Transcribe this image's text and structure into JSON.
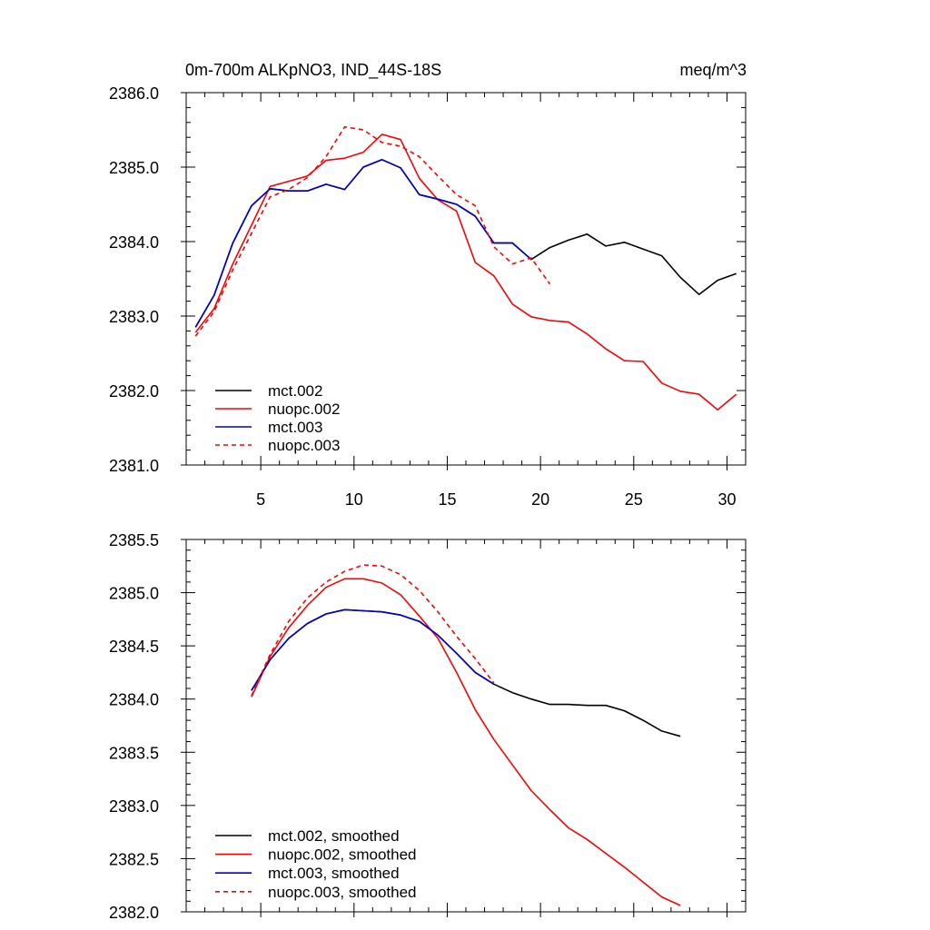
{
  "chart_data": [
    {
      "type": "line",
      "title": "0m-700m ALKpNO3, IND_44S-18S",
      "units": "meq/m^3",
      "xlim": [
        1,
        31
      ],
      "ylim": [
        2381.0,
        2386.0
      ],
      "xticks": [
        5,
        10,
        15,
        20,
        25,
        30
      ],
      "yticks": [
        2381.0,
        2382.0,
        2383.0,
        2384.0,
        2385.0,
        2386.0
      ],
      "xticklabels": [
        "5",
        "10",
        "15",
        "20",
        "25",
        "30"
      ],
      "yticklabels": [
        "2381.0",
        "2382.0",
        "2383.0",
        "2384.0",
        "2385.0",
        "2386.0"
      ],
      "grid": false,
      "legend_position": "bottom-left",
      "series": [
        {
          "name": "mct.002",
          "color": "#000000",
          "dash": "solid",
          "x": [
            1.5,
            2.5,
            3.5,
            4.5,
            5.5,
            6.5,
            7.5,
            8.5,
            9.5,
            10.5,
            11.5,
            12.5,
            13.5,
            14.5,
            15.5,
            16.5,
            17.5,
            18.5,
            19.5,
            20.5,
            21.5,
            22.5,
            23.5,
            24.5,
            25.5,
            26.5,
            27.5,
            28.5,
            29.5,
            30.5
          ],
          "y": [
            2382.85,
            2383.28,
            2383.98,
            2384.48,
            2384.71,
            2384.68,
            2384.68,
            2384.77,
            2384.7,
            2385.0,
            2385.1,
            2384.99,
            2384.63,
            2384.57,
            2384.5,
            2384.34,
            2383.98,
            2383.98,
            2383.76,
            2383.92,
            2384.02,
            2384.1,
            2383.94,
            2383.99,
            2383.9,
            2383.81,
            2383.52,
            2383.29,
            2383.48,
            2383.57
          ]
        },
        {
          "name": "nuopc.002",
          "color": "#ff0000",
          "dash": "solid",
          "x": [
            1.5,
            2.5,
            3.5,
            4.5,
            5.5,
            6.5,
            7.5,
            8.5,
            9.5,
            10.5,
            11.5,
            12.5,
            13.5,
            14.5,
            15.5,
            16.5,
            17.5,
            18.5,
            19.5,
            20.5,
            21.5,
            22.5,
            23.5,
            24.5,
            25.5,
            26.5,
            27.5,
            28.5,
            29.5,
            30.5
          ],
          "y": [
            2382.78,
            2383.1,
            2383.7,
            2384.22,
            2384.74,
            2384.81,
            2384.88,
            2385.09,
            2385.12,
            2385.2,
            2385.44,
            2385.37,
            2384.85,
            2384.56,
            2384.41,
            2383.72,
            2383.54,
            2383.16,
            2382.99,
            2382.94,
            2382.92,
            2382.76,
            2382.56,
            2382.4,
            2382.39,
            2382.1,
            2381.99,
            2381.95,
            2381.74,
            2381.95
          ]
        },
        {
          "name": "mct.003",
          "color": "#0000cc",
          "dash": "solid",
          "x": [
            1.5,
            2.5,
            3.5,
            4.5,
            5.5,
            6.5,
            7.5,
            8.5,
            9.5,
            10.5,
            11.5,
            12.5,
            13.5,
            14.5,
            15.5,
            16.5,
            17.5,
            18.5,
            19.5
          ],
          "y": [
            2382.85,
            2383.28,
            2383.98,
            2384.48,
            2384.71,
            2384.68,
            2384.68,
            2384.77,
            2384.7,
            2385.0,
            2385.1,
            2384.99,
            2384.63,
            2384.57,
            2384.5,
            2384.34,
            2383.98,
            2383.98,
            2383.76
          ]
        },
        {
          "name": "nuopc.003",
          "color": "#ff0000",
          "dash": "dashed",
          "x": [
            1.5,
            2.5,
            3.5,
            4.5,
            5.5,
            6.5,
            7.5,
            8.5,
            9.5,
            10.5,
            11.5,
            12.5,
            13.5,
            14.5,
            15.5,
            16.5,
            17.5,
            18.5,
            19.5,
            20.5
          ],
          "y": [
            2382.73,
            2383.06,
            2383.62,
            2384.11,
            2384.6,
            2384.7,
            2384.86,
            2385.14,
            2385.54,
            2385.5,
            2385.33,
            2385.28,
            2385.14,
            2384.88,
            2384.63,
            2384.48,
            2383.93,
            2383.7,
            2383.78,
            2383.43
          ]
        }
      ]
    },
    {
      "type": "line",
      "xlim": [
        1,
        31
      ],
      "ylim": [
        2382.0,
        2385.5
      ],
      "xticks": [
        5,
        10,
        15,
        20,
        25,
        30
      ],
      "yticks": [
        2382.0,
        2382.5,
        2383.0,
        2383.5,
        2384.0,
        2384.5,
        2385.0,
        2385.5
      ],
      "yticklabels": [
        "2382.0",
        "2382.5",
        "2383.0",
        "2383.5",
        "2384.0",
        "2384.5",
        "2385.0",
        "2385.5"
      ],
      "grid": false,
      "legend_position": "bottom-left",
      "series": [
        {
          "name": "mct.002, smoothed",
          "color": "#000000",
          "dash": "solid",
          "x": [
            4.5,
            5.5,
            6.5,
            7.5,
            8.5,
            9.5,
            10.5,
            11.5,
            12.5,
            13.5,
            14.5,
            15.5,
            16.5,
            17.5,
            18.5,
            19.5,
            20.5,
            21.5,
            22.5,
            23.5,
            24.5,
            25.5,
            26.5,
            27.5
          ],
          "y": [
            2384.08,
            2384.37,
            2384.57,
            2384.71,
            2384.8,
            2384.84,
            2384.83,
            2384.82,
            2384.79,
            2384.73,
            2384.6,
            2384.43,
            2384.25,
            2384.14,
            2384.06,
            2384.0,
            2383.95,
            2383.95,
            2383.94,
            2383.94,
            2383.89,
            2383.8,
            2383.7,
            2383.65
          ]
        },
        {
          "name": "nuopc.002, smoothed",
          "color": "#ff0000",
          "dash": "solid",
          "x": [
            4.5,
            5.5,
            6.5,
            7.5,
            8.5,
            9.5,
            10.5,
            11.5,
            12.5,
            13.5,
            14.5,
            15.5,
            16.5,
            17.5,
            18.5,
            19.5,
            20.5,
            21.5,
            22.5,
            23.5,
            24.5,
            25.5,
            26.5,
            27.5
          ],
          "y": [
            2384.02,
            2384.4,
            2384.67,
            2384.88,
            2385.05,
            2385.13,
            2385.13,
            2385.09,
            2384.98,
            2384.78,
            2384.57,
            2384.25,
            2383.9,
            2383.62,
            2383.38,
            2383.14,
            2382.96,
            2382.79,
            2382.68,
            2382.55,
            2382.42,
            2382.28,
            2382.14,
            2382.06
          ]
        },
        {
          "name": "mct.003, smoothed",
          "color": "#0000cc",
          "dash": "solid",
          "x": [
            4.5,
            5.5,
            6.5,
            7.5,
            8.5,
            9.5,
            10.5,
            11.5,
            12.5,
            13.5,
            14.5,
            15.5,
            16.5,
            17.5
          ],
          "y": [
            2384.08,
            2384.37,
            2384.57,
            2384.71,
            2384.8,
            2384.84,
            2384.83,
            2384.82,
            2384.79,
            2384.73,
            2384.6,
            2384.43,
            2384.25,
            2384.14
          ]
        },
        {
          "name": "nuopc.003, smoothed",
          "color": "#ff0000",
          "dash": "dashed",
          "x": [
            4.5,
            5.5,
            6.5,
            7.5,
            8.5,
            9.5,
            10.5,
            11.5,
            12.5,
            13.5,
            14.5,
            15.5,
            16.5,
            17.5
          ],
          "y": [
            2384.03,
            2384.42,
            2384.73,
            2384.95,
            2385.1,
            2385.2,
            2385.26,
            2385.25,
            2385.17,
            2385.02,
            2384.82,
            2384.59,
            2384.38,
            2384.15
          ]
        }
      ]
    }
  ]
}
